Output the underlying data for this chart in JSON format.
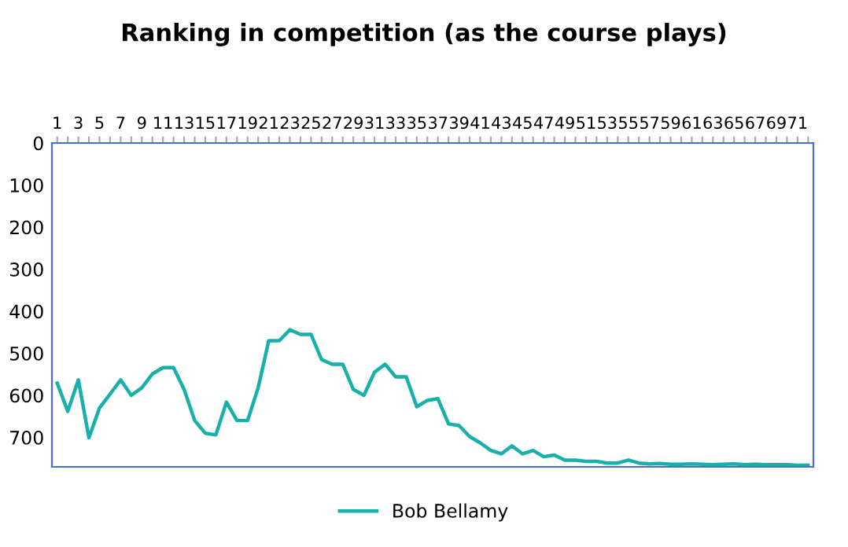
{
  "chart_data": {
    "type": "line",
    "title": "Ranking in competition (as the course plays)",
    "categories": [
      "1",
      null,
      "3",
      null,
      "5",
      null,
      "7",
      null,
      "9",
      null,
      "11",
      null,
      "13",
      null,
      "15",
      null,
      "17",
      null,
      "19",
      null,
      "21",
      null,
      "23",
      null,
      "25",
      null,
      "27",
      null,
      "29",
      null,
      "31",
      null,
      "33",
      null,
      "35",
      null,
      "37",
      null,
      "39",
      null,
      "41",
      null,
      "43",
      null,
      "45",
      null,
      "47",
      null,
      "49",
      null,
      "51",
      null,
      "53",
      null,
      "55",
      null,
      "57",
      null,
      "59",
      null,
      "61",
      null,
      "63",
      null,
      "65",
      null,
      "67",
      null,
      "69",
      null,
      "71",
      null
    ],
    "series": [
      {
        "name": "Bob Bellamy",
        "color": "#17b0aa",
        "values": [
          571,
          638,
          563,
          701,
          630,
          597,
          563,
          600,
          582,
          549,
          534,
          534,
          586,
          660,
          690,
          694,
          616,
          660,
          660,
          582,
          470,
          470,
          444,
          455,
          455,
          515,
          526,
          526,
          586,
          600,
          545,
          526,
          556,
          556,
          627,
          612,
          608,
          668,
          672,
          698,
          713,
          731,
          739,
          720,
          739,
          731,
          746,
          742,
          754,
          754,
          757,
          757,
          761,
          761,
          754,
          761,
          763,
          762,
          764,
          764,
          763,
          764,
          765,
          764,
          763,
          765,
          764,
          765,
          765,
          765,
          766,
          766
        ]
      }
    ],
    "ylim": [
      770,
      0
    ],
    "yticks": [
      0,
      100,
      200,
      300,
      400,
      500,
      600,
      700
    ],
    "legend": "bottom",
    "grid": false,
    "marker": "none",
    "line_style": "solid"
  }
}
